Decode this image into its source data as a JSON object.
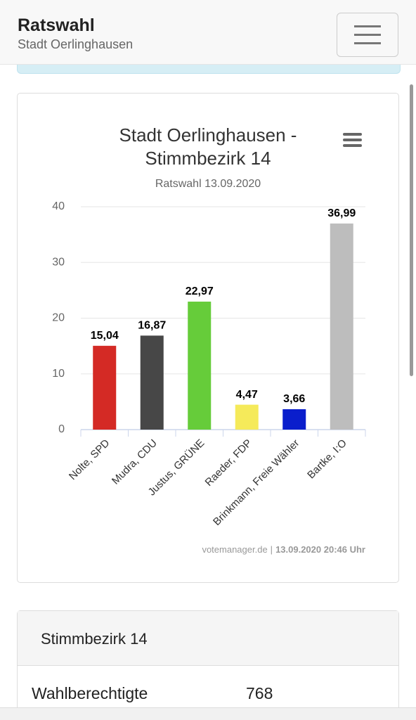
{
  "header": {
    "title": "Ratswahl",
    "subtitle": "Stadt Oerlinghausen"
  },
  "chart_data": {
    "type": "bar",
    "title": "Stadt Oerlinghausen - Stimmbezirk 14",
    "subtitle": "Ratswahl 13.09.2020",
    "categories": [
      "Nolte, SPD",
      "Mudra, CDU",
      "Justus, GRÜNE",
      "Raeder, FDP",
      "Brinkmann, Freie Wähler",
      "Bartke, I:O"
    ],
    "values": [
      15.04,
      16.87,
      22.97,
      4.47,
      3.66,
      36.99
    ],
    "value_labels": [
      "15,04",
      "16,87",
      "22,97",
      "4,47",
      "3,66",
      "36,99"
    ],
    "colors": [
      "#d42a25",
      "#474747",
      "#66cc3a",
      "#f5ea5a",
      "#0a1ecc",
      "#bdbdbd"
    ],
    "ylim": [
      0,
      40
    ],
    "yticks": [
      0,
      10,
      20,
      30,
      40
    ],
    "grid": true,
    "credits": {
      "source": "votemanager.de",
      "separator": "|",
      "date": "13.09.2020 20:46 Uhr"
    }
  },
  "table": {
    "header": "Stimmbezirk 14",
    "rows": [
      [
        "Wahlberechtigte",
        768
      ]
    ]
  }
}
